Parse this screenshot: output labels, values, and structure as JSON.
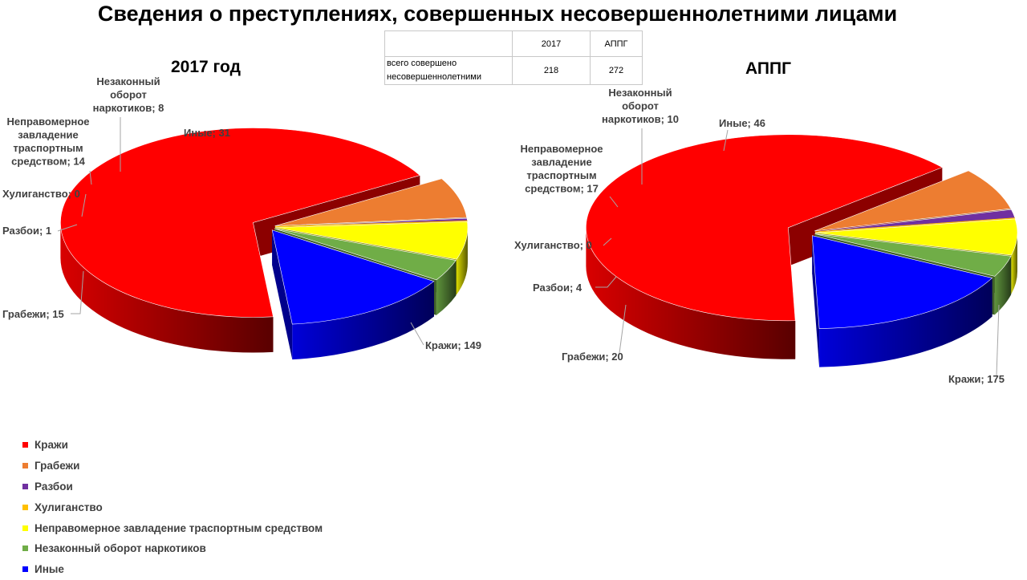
{
  "title": "Сведения о преступлениях, совершенных несовершеннолетними лицами",
  "summary_table": {
    "headers": [
      "",
      "2017",
      "АППГ"
    ],
    "row": {
      "label": "всего совершено несовершеннолетними",
      "values": [
        "218",
        "272"
      ]
    }
  },
  "chart_data": [
    {
      "type": "pie",
      "title": "2017 год",
      "categories": [
        "Кражи",
        "Грабежи",
        "Разбои",
        "Хулиганство",
        "Неправомерное завладение траспортным средством",
        "Незаконный оборот наркотиков",
        "Иные"
      ],
      "values": [
        149,
        15,
        1,
        0,
        14,
        8,
        31
      ],
      "labels": [
        "Кражи; 149",
        "Грабежи; 15",
        "Разбои; 1",
        "Хулиганство; 0",
        "Неправомерное завладение траспортным средством; 14",
        "Незаконный оборот наркотиков; 8",
        "Иные; 31"
      ],
      "legend_placement": "bottom-left"
    },
    {
      "type": "pie",
      "title": "АППГ",
      "categories": [
        "Кражи",
        "Грабежи",
        "Разбои",
        "Хулиганство",
        "Неправомерное завладение траспортным средством",
        "Незаконный оборот наркотиков",
        "Иные"
      ],
      "values": [
        175,
        20,
        4,
        0,
        17,
        10,
        46
      ],
      "labels": [
        "Кражи; 175",
        "Грабежи; 20",
        "Разбои; 4",
        "Хулиганство; 0",
        "Неправомерное завладение траспортным средством; 17",
        "Незаконный оборот наркотиков; 10",
        "Иные; 46"
      ],
      "legend_placement": "bottom-left"
    }
  ],
  "legend": {
    "items": [
      {
        "label": "Кражи",
        "color": "#ff0000"
      },
      {
        "label": "Грабежи",
        "color": "#ed7d31"
      },
      {
        "label": "Разбои",
        "color": "#7030a0"
      },
      {
        "label": "Хулиганство",
        "color": "#ffc000"
      },
      {
        "label": "Неправомерное завладение траспортным средством",
        "color": "#ffff00"
      },
      {
        "label": "Незаконный оборот наркотиков",
        "color": "#70ad47"
      },
      {
        "label": "Иные",
        "color": "#0000ff"
      }
    ]
  },
  "colors": [
    "#ff0000",
    "#ed7d31",
    "#7030a0",
    "#ffc000",
    "#ffff00",
    "#70ad47",
    "#0000ff"
  ]
}
